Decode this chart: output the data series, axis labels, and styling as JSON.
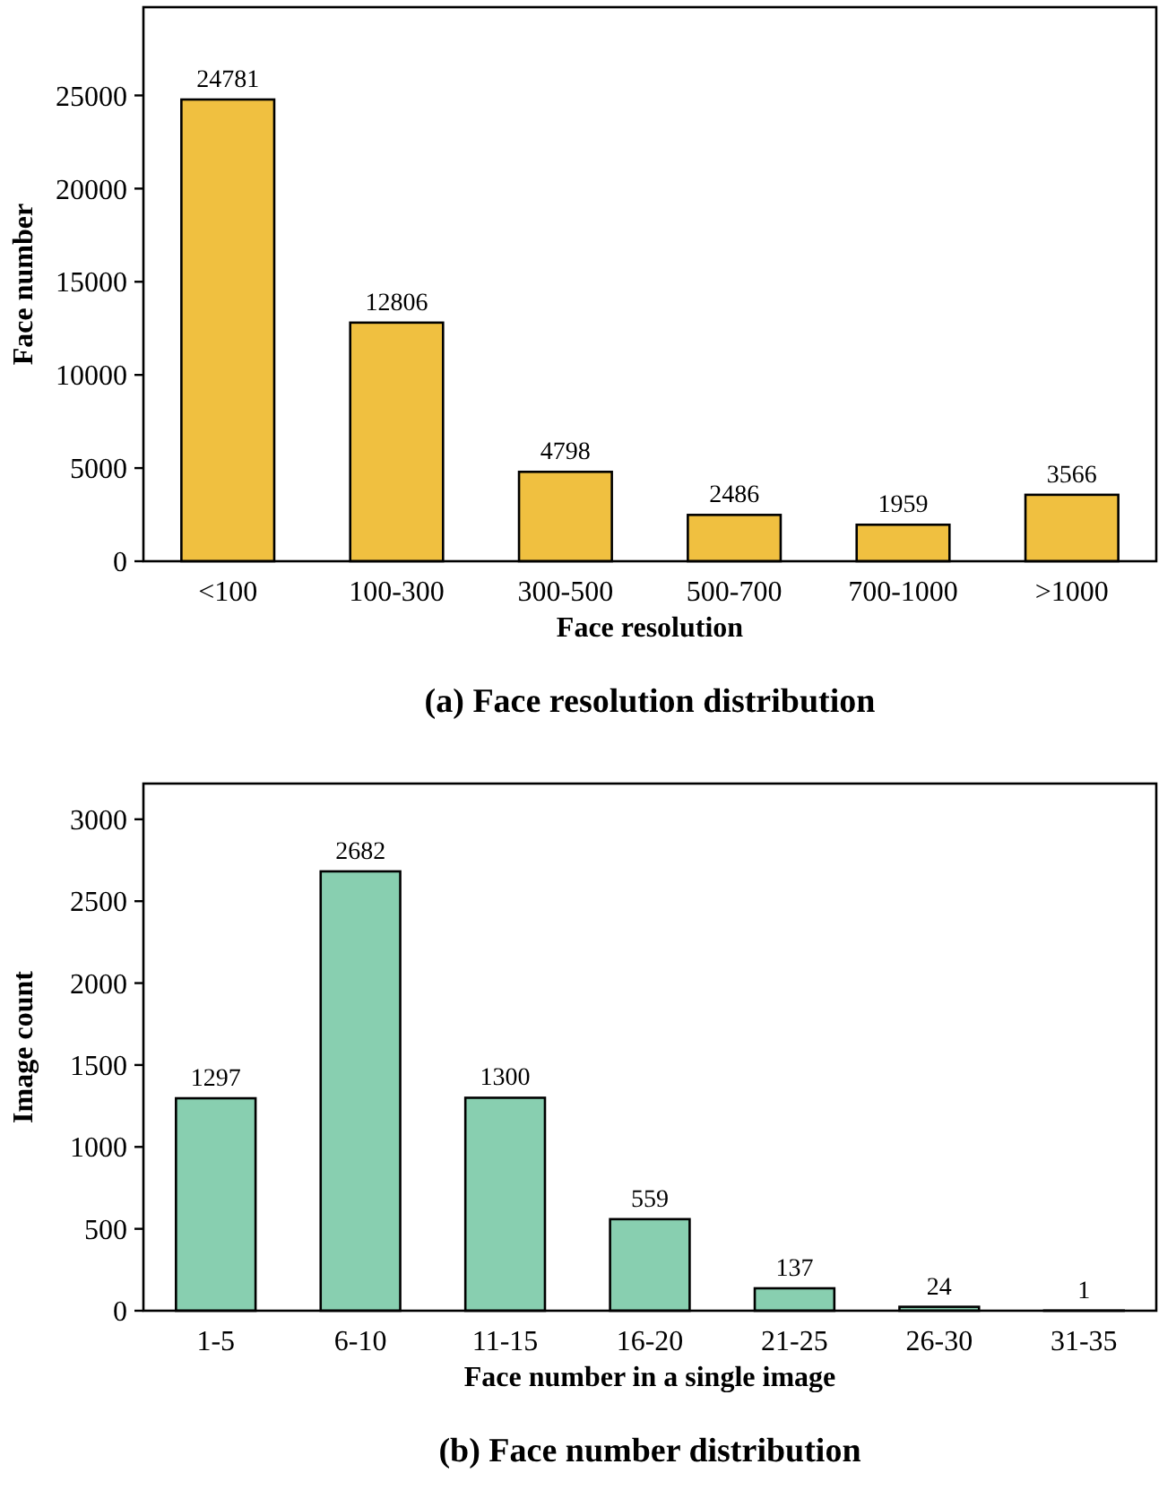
{
  "chart_data": [
    {
      "type": "bar",
      "title": "(a) Face resolution distribution",
      "xlabel": "Face resolution",
      "ylabel": "Face number",
      "categories": [
        "<100",
        "100-300",
        "300-500",
        "500-700",
        "700-1000",
        ">1000"
      ],
      "values": [
        24781,
        12806,
        4798,
        2486,
        1959,
        3566
      ],
      "color": "#f0c040",
      "ylim": [
        0,
        29737
      ],
      "yticks": [
        0,
        5000,
        10000,
        15000,
        20000,
        25000
      ],
      "data_labels": true
    },
    {
      "type": "bar",
      "title": "(b) Face number distribution",
      "xlabel": "Face number in a single image",
      "ylabel": "Image count",
      "categories": [
        "1-5",
        "6-10",
        "11-15",
        "16-20",
        "21-25",
        "26-30",
        "31-35"
      ],
      "values": [
        1297,
        2682,
        1300,
        559,
        137,
        24,
        1
      ],
      "color": "#88cfb0",
      "ylim": [
        0,
        3218
      ],
      "yticks": [
        0,
        500,
        1000,
        1500,
        2000,
        2500,
        3000
      ],
      "data_labels": true
    }
  ]
}
